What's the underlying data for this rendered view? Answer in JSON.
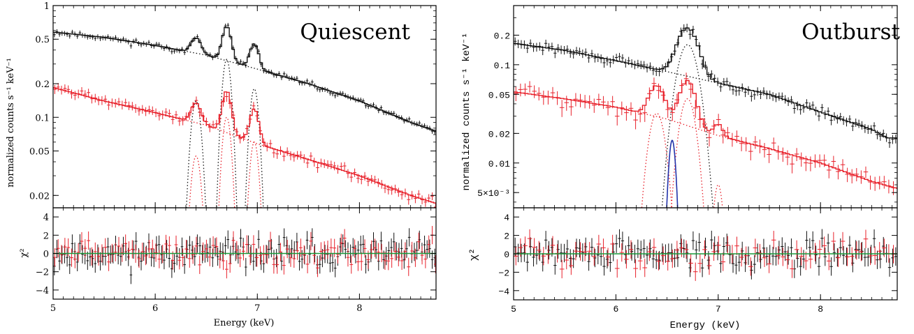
{
  "colors": {
    "black_series": "#111111",
    "red_series": "#e8202a",
    "blue_series": "#2233aa",
    "zero_line": "#1a9a3a",
    "frame": "#000000"
  },
  "panels": [
    {
      "id": "quiescent",
      "title": "Quiescent",
      "top": {
        "ylabel": "normalized counts s⁻¹ keV⁻¹",
        "yscale": "log",
        "ylim": [
          0.0155,
          1.0
        ],
        "ytick_values": [
          1,
          0.5,
          0.2,
          0.1,
          0.05,
          0.02
        ],
        "ytick_labels": [
          "1",
          "0.5",
          "0.2",
          "0.1",
          "0.05",
          "0.02"
        ]
      },
      "bottom": {
        "ylabel": "χ²",
        "ylim": [
          -5,
          5
        ],
        "ytick_values": [
          4,
          2,
          0,
          -2,
          -4
        ],
        "ytick_labels": [
          "4",
          "2",
          "0",
          "−2",
          "−4"
        ]
      },
      "xlabel": "Energy (keV)",
      "xlim": [
        5.0,
        8.75
      ],
      "xtick_values": [
        5,
        6,
        7,
        8
      ],
      "xtick_labels": [
        "5",
        "6",
        "7",
        "8"
      ]
    },
    {
      "id": "outburst",
      "title": "Outburst",
      "top": {
        "ylabel": "normalized counts s⁻¹ keV⁻¹",
        "yscale": "log",
        "ylim": [
          0.0035,
          0.4
        ],
        "ytick_values": [
          0.2,
          0.1,
          0.05,
          0.02,
          0.01,
          0.005
        ],
        "ytick_labels": [
          "0.2",
          "0.1",
          "0.05",
          "0.02",
          "0.01",
          "5×10⁻³"
        ]
      },
      "bottom": {
        "ylabel": "χ²",
        "ylim": [
          -5,
          5
        ],
        "ytick_values": [
          4,
          2,
          0,
          -2,
          -4
        ],
        "ytick_labels": [
          "4",
          "2",
          "0",
          "−2",
          "−4"
        ]
      },
      "xlabel": "Energy (keV)",
      "xlim": [
        5.0,
        8.75
      ],
      "xtick_values": [
        5,
        6,
        7,
        8
      ],
      "xtick_labels": [
        "5",
        "6",
        "7",
        "8"
      ]
    }
  ],
  "chart_data": [
    {
      "type": "line",
      "panel": "quiescent",
      "title": "Quiescent",
      "xlabel": "Energy (keV)",
      "ylabel": "normalized counts s⁻¹ keV⁻¹",
      "xlim": [
        5.0,
        8.75
      ],
      "ylim": [
        0.0155,
        1.0
      ],
      "yscale": "log",
      "series": [
        {
          "color": "black",
          "continuum": [
            [
              5.0,
              0.58
            ],
            [
              5.5,
              0.52
            ],
            [
              6.0,
              0.44
            ],
            [
              6.5,
              0.36
            ],
            [
              7.0,
              0.27
            ],
            [
              7.5,
              0.2
            ],
            [
              8.0,
              0.14
            ],
            [
              8.5,
              0.09
            ],
            [
              8.75,
              0.075
            ]
          ],
          "lines": [
            [
              6.4,
              0.14,
              0.045
            ],
            [
              6.7,
              0.33,
              0.04
            ],
            [
              6.97,
              0.18,
              0.04
            ]
          ]
        },
        {
          "color": "red",
          "continuum": [
            [
              5.0,
              0.185
            ],
            [
              5.5,
              0.14
            ],
            [
              6.0,
              0.11
            ],
            [
              6.5,
              0.085
            ],
            [
              7.0,
              0.058
            ],
            [
              7.5,
              0.042
            ],
            [
              8.0,
              0.03
            ],
            [
              8.5,
              0.02
            ],
            [
              8.75,
              0.017
            ]
          ],
          "lines": [
            [
              6.4,
              0.045,
              0.045
            ],
            [
              6.7,
              0.1,
              0.04
            ],
            [
              6.97,
              0.06,
              0.04
            ]
          ]
        }
      ],
      "residuals": {
        "ylim": [
          -5,
          5
        ],
        "ylabel": "χ²"
      }
    },
    {
      "type": "line",
      "panel": "outburst",
      "title": "Outburst",
      "xlabel": "Energy (keV)",
      "ylabel": "normalized counts s⁻¹ keV⁻¹",
      "xlim": [
        5.0,
        8.75
      ],
      "ylim": [
        0.0035,
        0.4
      ],
      "yscale": "log",
      "series": [
        {
          "color": "black",
          "continuum": [
            [
              5.0,
              0.165
            ],
            [
              5.5,
              0.14
            ],
            [
              6.0,
              0.11
            ],
            [
              6.5,
              0.085
            ],
            [
              7.0,
              0.065
            ],
            [
              7.5,
              0.05
            ],
            [
              8.0,
              0.033
            ],
            [
              8.5,
              0.022
            ],
            [
              8.65,
              0.018
            ]
          ],
          "lines": [
            [
              6.7,
              0.16,
              0.09
            ]
          ]
        },
        {
          "color": "red",
          "continuum": [
            [
              5.0,
              0.053
            ],
            [
              5.5,
              0.045
            ],
            [
              6.0,
              0.037
            ],
            [
              6.5,
              0.028
            ],
            [
              7.0,
              0.019
            ],
            [
              7.5,
              0.014
            ],
            [
              8.0,
              0.01
            ],
            [
              8.5,
              0.0065
            ],
            [
              8.75,
              0.0055
            ]
          ],
          "lines": [
            [
              6.4,
              0.032,
              0.07
            ],
            [
              6.7,
              0.045,
              0.07
            ],
            [
              7.0,
              0.006,
              0.04
            ]
          ]
        },
        {
          "color": "blue",
          "lines": [
            [
              6.55,
              0.017,
              0.03
            ]
          ]
        }
      ],
      "residuals": {
        "ylim": [
          -5,
          5
        ],
        "ylabel": "χ²"
      }
    }
  ]
}
